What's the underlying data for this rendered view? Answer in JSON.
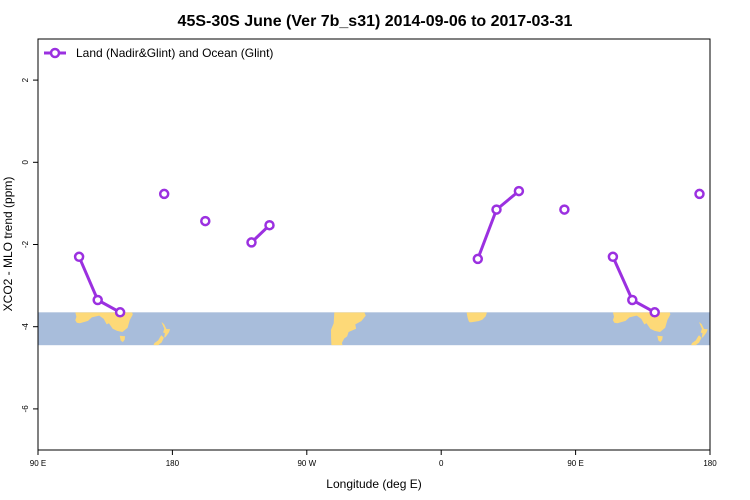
{
  "chart_data": {
    "type": "line",
    "title": "45S-30S June (Ver 7b_s31)   2014-09-06 to 2017-03-31",
    "xlabel": "Longitude (deg E)",
    "ylabel": "XCO2 - MLO trend (ppm)",
    "xlim": [
      90,
      450
    ],
    "ylim": [
      -7,
      3
    ],
    "x_ticks": [
      {
        "value": 90,
        "label": "90 E"
      },
      {
        "value": 180,
        "label": "180"
      },
      {
        "value": 270,
        "label": "90 W"
      },
      {
        "value": 360,
        "label": "0"
      },
      {
        "value": 450,
        "label": "90 E"
      },
      {
        "value": 540,
        "label": "180"
      }
    ],
    "y_ticks": [
      {
        "value": 2,
        "label": "2"
      },
      {
        "value": 0,
        "label": "0"
      },
      {
        "value": -2,
        "label": "-2"
      },
      {
        "value": -4,
        "label": "-4"
      },
      {
        "value": -6,
        "label": "-6"
      }
    ],
    "legend": {
      "placement": "top-left"
    },
    "series": [
      {
        "name": "Land (Nadir&Glint) and Ocean (Glint)",
        "color": "#9b30e0",
        "segments": [
          [
            {
              "x": 117.5,
              "y": -2.3
            },
            {
              "x": 130,
              "y": -3.35
            },
            {
              "x": 145,
              "y": -3.65
            }
          ],
          [
            {
              "x": 174.5,
              "y": -0.77
            }
          ],
          [
            {
              "x": 202,
              "y": -1.43
            }
          ],
          [
            {
              "x": 233,
              "y": -1.95
            },
            {
              "x": 245,
              "y": -1.53
            }
          ],
          [
            {
              "x": 384.5,
              "y": -2.35
            },
            {
              "x": 397,
              "y": -1.15
            },
            {
              "x": 412,
              "y": -0.7
            }
          ],
          [
            {
              "x": 442.5,
              "y": -1.15
            }
          ],
          [
            {
              "x": 475,
              "y": -2.3
            },
            {
              "x": 488,
              "y": -3.35
            },
            {
              "x": 503,
              "y": -3.65
            }
          ],
          [
            {
              "x": 533,
              "y": -0.77
            }
          ]
        ]
      }
    ],
    "map_strip": {
      "ocean_color": "#a8bddb",
      "land_color": "#fdd978",
      "lat_range": [
        -45,
        -30
      ],
      "y_range": [
        -4.45,
        -3.65
      ]
    }
  }
}
